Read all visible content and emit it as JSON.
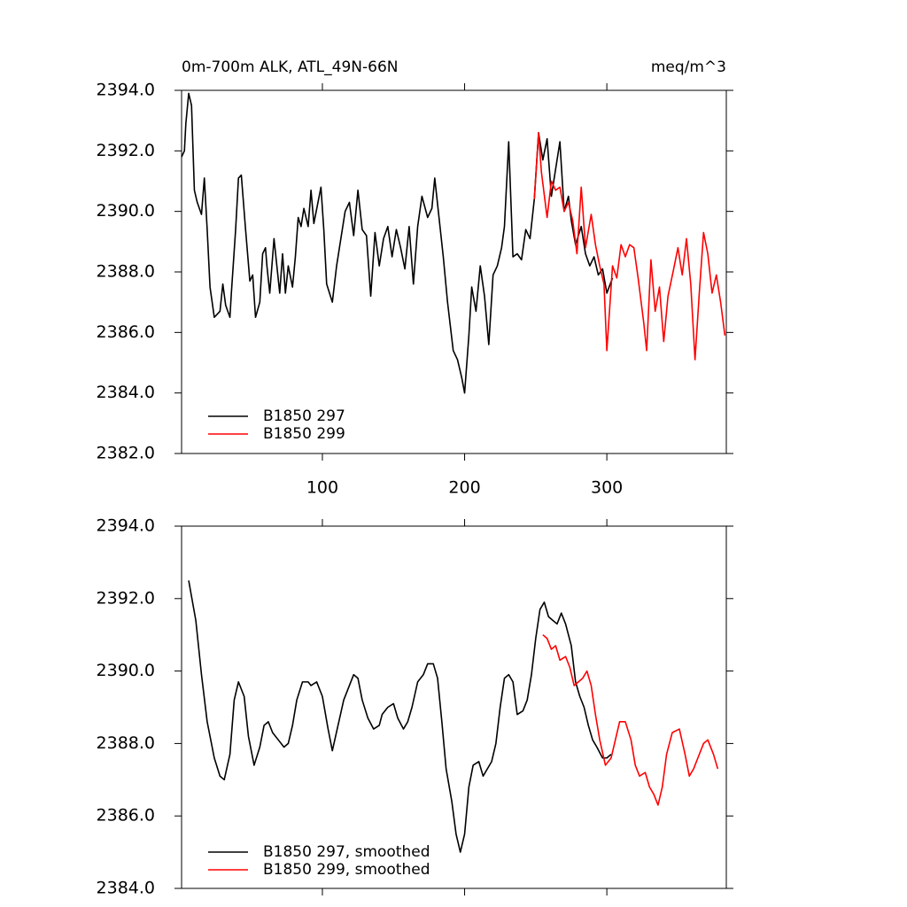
{
  "chart_data": [
    {
      "type": "line",
      "title": "0m-700m ALK, ATL_49N-66N",
      "units": "meq/m^3",
      "xlim": [
        1,
        384
      ],
      "xticks": [
        100,
        200,
        300
      ],
      "show_xtick_labels": true,
      "ylim": [
        2382,
        2394
      ],
      "yticks": [
        {
          "value": 2382,
          "label": "2382.0"
        },
        {
          "value": 2384,
          "label": "2384.0"
        },
        {
          "value": 2386,
          "label": "2386.0"
        },
        {
          "value": 2388,
          "label": "2388.0"
        },
        {
          "value": 2390,
          "label": "2390.0"
        },
        {
          "value": 2392,
          "label": "2392.0"
        },
        {
          "value": 2394,
          "label": "2394.0"
        }
      ],
      "series": [
        {
          "name": "B1850 297",
          "color": "#000000",
          "x": [
            1,
            3,
            4,
            6,
            8,
            10,
            12,
            15,
            17,
            19,
            21,
            24,
            28,
            30,
            32,
            35,
            36,
            39,
            41,
            43,
            46,
            49,
            51,
            53,
            56,
            58,
            60,
            61,
            63,
            66,
            68,
            70,
            72,
            74,
            76,
            79,
            81,
            83,
            85,
            87,
            90,
            92,
            94,
            99,
            101,
            103,
            107,
            110,
            113,
            116,
            119,
            122,
            125,
            128,
            131,
            134,
            137,
            140,
            143,
            146,
            149,
            152,
            155,
            158,
            161,
            164,
            167,
            170,
            174,
            177,
            179,
            182,
            185,
            188,
            192,
            195,
            198,
            200,
            203,
            205,
            208,
            211,
            214,
            217,
            220,
            223,
            226,
            228,
            231,
            234,
            237,
            240,
            243,
            246,
            249,
            252,
            255,
            258,
            261,
            264,
            267,
            270,
            273,
            275,
            278,
            282,
            285,
            288,
            291,
            294,
            297,
            300,
            304
          ],
          "values": [
            2391.8,
            2392.0,
            2392.9,
            2393.9,
            2393.5,
            2390.7,
            2390.3,
            2389.9,
            2391.1,
            2389.4,
            2387.5,
            2386.5,
            2386.7,
            2387.6,
            2386.9,
            2386.5,
            2387.3,
            2389.4,
            2391.1,
            2391.2,
            2389.4,
            2387.7,
            2387.9,
            2386.5,
            2387.0,
            2388.6,
            2388.8,
            2388.2,
            2387.3,
            2389.1,
            2388.2,
            2387.3,
            2388.6,
            2387.3,
            2388.2,
            2387.5,
            2388.5,
            2389.8,
            2389.5,
            2390.1,
            2389.5,
            2390.7,
            2389.6,
            2390.8,
            2389.4,
            2387.6,
            2387.0,
            2388.2,
            2389.1,
            2390.0,
            2390.3,
            2389.2,
            2390.7,
            2389.4,
            2389.2,
            2387.2,
            2389.3,
            2388.2,
            2389.1,
            2389.5,
            2388.5,
            2389.4,
            2388.8,
            2388.1,
            2389.5,
            2387.6,
            2389.5,
            2390.5,
            2389.8,
            2390.1,
            2391.1,
            2389.8,
            2388.5,
            2387.0,
            2385.4,
            2385.1,
            2384.5,
            2384.0,
            2385.9,
            2387.5,
            2386.7,
            2388.2,
            2387.2,
            2385.6,
            2387.9,
            2388.2,
            2388.8,
            2389.5,
            2392.3,
            2388.5,
            2388.6,
            2388.4,
            2389.4,
            2389.1,
            2390.4,
            2392.6,
            2391.7,
            2392.4,
            2390.5,
            2391.4,
            2392.3,
            2390.0,
            2390.5,
            2389.7,
            2388.9,
            2389.5,
            2388.6,
            2388.2,
            2388.5,
            2387.9,
            2388.1,
            2387.3,
            2387.8
          ]
        },
        {
          "name": "B1850 299",
          "color": "#ff0000",
          "x": [
            249,
            252,
            254,
            258,
            261,
            264,
            267,
            270,
            273,
            276,
            279,
            282,
            285,
            289,
            292,
            295,
            298,
            300,
            304,
            307,
            310,
            313,
            316,
            319,
            322,
            326,
            328,
            331,
            334,
            337,
            340,
            343,
            347,
            350,
            353,
            356,
            359,
            362,
            365,
            368,
            371,
            374,
            377,
            380,
            383
          ],
          "values": [
            2390.4,
            2392.6,
            2391.3,
            2389.8,
            2391.0,
            2390.7,
            2390.8,
            2390.0,
            2390.3,
            2389.7,
            2388.6,
            2390.8,
            2388.8,
            2389.9,
            2388.9,
            2388.2,
            2387.6,
            2385.4,
            2388.2,
            2387.8,
            2388.9,
            2388.5,
            2388.9,
            2388.8,
            2387.8,
            2386.3,
            2385.4,
            2388.4,
            2386.7,
            2387.5,
            2385.7,
            2387.2,
            2388.1,
            2388.8,
            2387.9,
            2389.1,
            2387.6,
            2385.1,
            2387.3,
            2389.3,
            2388.6,
            2387.3,
            2387.9,
            2387.0,
            2385.9
          ]
        }
      ]
    },
    {
      "type": "line",
      "xlim": [
        1,
        384
      ],
      "xticks": [
        100,
        200,
        300
      ],
      "show_xtick_labels": false,
      "ylim": [
        2384,
        2394
      ],
      "yticks": [
        {
          "value": 2384,
          "label": "2384.0"
        },
        {
          "value": 2386,
          "label": "2386.0"
        },
        {
          "value": 2388,
          "label": "2388.0"
        },
        {
          "value": 2390,
          "label": "2390.0"
        },
        {
          "value": 2392,
          "label": "2392.0"
        },
        {
          "value": 2394,
          "label": "2394.0"
        }
      ],
      "series": [
        {
          "name": "B1850 297, smoothed",
          "color": "#000000",
          "x": [
            6,
            11,
            15,
            19,
            24,
            28,
            31,
            35,
            38,
            41,
            45,
            48,
            52,
            56,
            59,
            62,
            65,
            69,
            73,
            76,
            79,
            82,
            86,
            90,
            92,
            96,
            100,
            104,
            107,
            111,
            115,
            119,
            122,
            125,
            128,
            132,
            136,
            140,
            142,
            146,
            150,
            153,
            157,
            160,
            163,
            167,
            171,
            174,
            178,
            181,
            184,
            187,
            191,
            194,
            197,
            200,
            203,
            206,
            210,
            213,
            216,
            219,
            222,
            225,
            228,
            231,
            234,
            237,
            241,
            244,
            247,
            250,
            253,
            256,
            259,
            262,
            265,
            268,
            271,
            275,
            278,
            281,
            284,
            287,
            290,
            293,
            297,
            300,
            303
          ],
          "values": [
            2392.5,
            2391.4,
            2389.9,
            2388.6,
            2387.6,
            2387.1,
            2387.0,
            2387.7,
            2389.2,
            2389.7,
            2389.3,
            2388.2,
            2387.4,
            2387.9,
            2388.5,
            2388.6,
            2388.3,
            2388.1,
            2387.9,
            2388.0,
            2388.5,
            2389.2,
            2389.7,
            2389.7,
            2389.6,
            2389.7,
            2389.3,
            2388.4,
            2387.8,
            2388.5,
            2389.2,
            2389.6,
            2389.9,
            2389.8,
            2389.2,
            2388.7,
            2388.4,
            2388.5,
            2388.8,
            2389.0,
            2389.1,
            2388.7,
            2388.4,
            2388.6,
            2389.0,
            2389.7,
            2389.9,
            2390.2,
            2390.2,
            2389.8,
            2388.6,
            2387.3,
            2386.4,
            2385.5,
            2385.0,
            2385.5,
            2386.8,
            2387.4,
            2387.5,
            2387.1,
            2387.3,
            2387.5,
            2388.0,
            2389.0,
            2389.8,
            2389.9,
            2389.7,
            2388.8,
            2388.9,
            2389.2,
            2389.9,
            2390.9,
            2391.7,
            2391.9,
            2391.5,
            2391.4,
            2391.3,
            2391.6,
            2391.3,
            2390.7,
            2389.7,
            2389.3,
            2389.0,
            2388.5,
            2388.1,
            2387.9,
            2387.6,
            2387.6,
            2387.7
          ]
        },
        {
          "name": "B1850 299, smoothed",
          "color": "#ff0000",
          "x": [
            255,
            258,
            261,
            264,
            267,
            271,
            274,
            277,
            280,
            283,
            286,
            289,
            292,
            295,
            299,
            303,
            306,
            309,
            313,
            317,
            320,
            323,
            327,
            330,
            333,
            336,
            339,
            342,
            346,
            351,
            355,
            358,
            361,
            364,
            368,
            371,
            375,
            378
          ],
          "values": [
            2391.0,
            2390.9,
            2390.6,
            2390.7,
            2390.3,
            2390.4,
            2390.1,
            2389.6,
            2389.7,
            2389.8,
            2390.0,
            2389.6,
            2388.8,
            2388.1,
            2387.4,
            2387.6,
            2388.1,
            2388.6,
            2388.6,
            2388.1,
            2387.4,
            2387.1,
            2387.2,
            2386.8,
            2386.6,
            2386.3,
            2386.8,
            2387.7,
            2388.3,
            2388.4,
            2387.7,
            2387.1,
            2387.3,
            2387.6,
            2388.0,
            2388.1,
            2387.7,
            2387.3
          ]
        }
      ]
    }
  ]
}
